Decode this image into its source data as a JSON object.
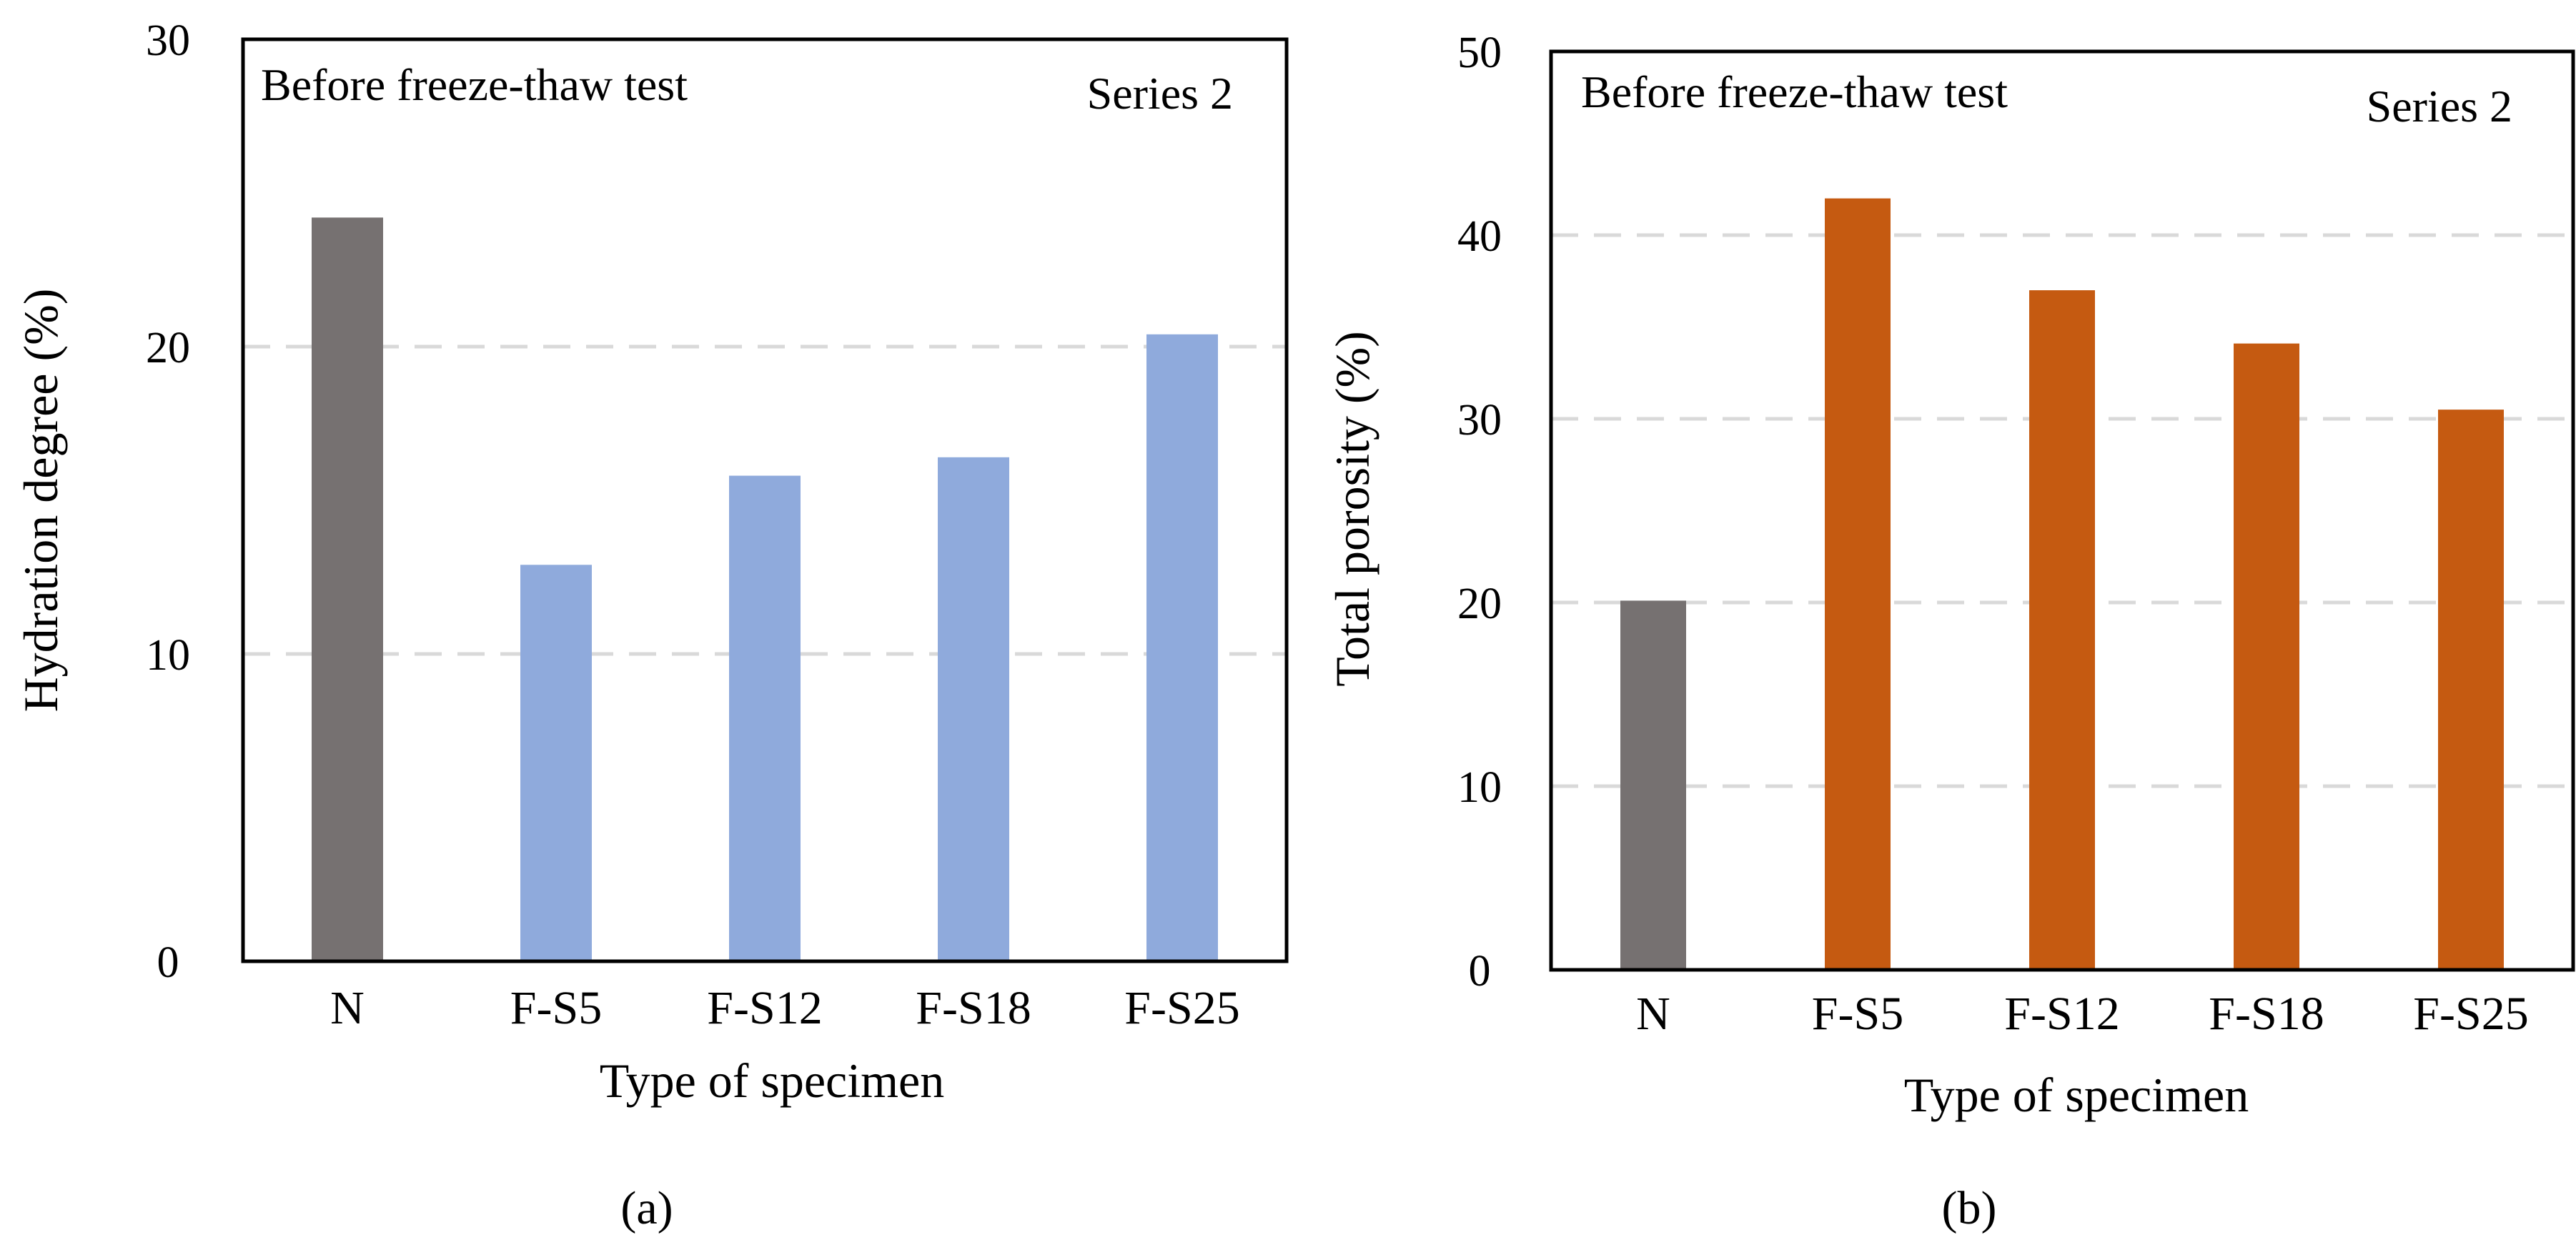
{
  "colors": {
    "reference_bar": "#767171",
    "panel_a_bar": "#8FAADC",
    "panel_b_bar": "#C55A11",
    "gridline": "#D9D9D9",
    "frame": "#000000"
  },
  "chart_data": [
    {
      "type": "bar",
      "panel_label": "(a)",
      "inset_left": "Before freeze-thaw test",
      "inset_right": "Series 2",
      "categories": [
        "N",
        "F-S5",
        "F-S12",
        "F-S18",
        "F-S25"
      ],
      "values": [
        24.2,
        12.9,
        15.8,
        16.4,
        20.4
      ],
      "xlabel": "Type of specimen",
      "ylabel": "Hydration degree  (%)",
      "ylim": [
        0,
        30
      ],
      "yticks": [
        0,
        10,
        20,
        30
      ],
      "grid": "horizontal dashed"
    },
    {
      "type": "bar",
      "panel_label": "(b)",
      "inset_left": "Before freeze-thaw test",
      "inset_right": "Series 2",
      "categories": [
        "N",
        "F-S5",
        "F-S12",
        "F-S18",
        "F-S25"
      ],
      "values": [
        20.1,
        42.0,
        37.0,
        34.1,
        30.5
      ],
      "xlabel": "Type of specimen",
      "ylabel": "Total porosity (%)",
      "ylim": [
        0,
        50
      ],
      "yticks": [
        0,
        10,
        20,
        30,
        40,
        50
      ],
      "grid": "horizontal dashed"
    }
  ]
}
